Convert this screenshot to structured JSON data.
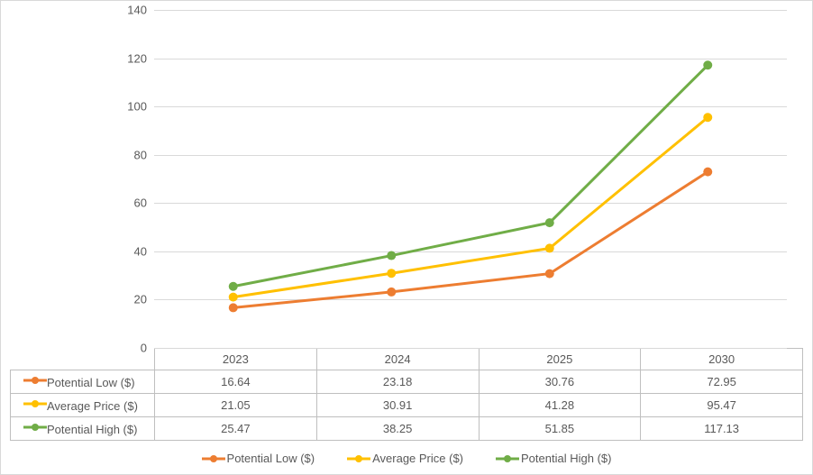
{
  "chart": {
    "type": "line",
    "categories": [
      "2023",
      "2024",
      "2025",
      "2030"
    ],
    "ylim": [
      0,
      140
    ],
    "ytick_step": 20,
    "yticks": [
      0,
      20,
      40,
      60,
      80,
      100,
      120,
      140
    ],
    "grid_color": "#d9d9d9",
    "border_color": "#bfbfbf",
    "background_color": "#ffffff",
    "axis_font_color": "#595959",
    "axis_fontsize": 13,
    "line_width": 3,
    "marker_radius": 5,
    "series": [
      {
        "name": "Potential Low ($)",
        "color": "#ed7d31",
        "values": [
          16.64,
          23.18,
          30.76,
          72.95
        ]
      },
      {
        "name": "Average Price ($)",
        "color": "#ffc000",
        "values": [
          21.05,
          30.91,
          41.28,
          95.47
        ]
      },
      {
        "name": "Potential High ($)",
        "color": "#70ad47",
        "values": [
          25.47,
          38.25,
          51.85,
          117.13
        ]
      }
    ]
  }
}
